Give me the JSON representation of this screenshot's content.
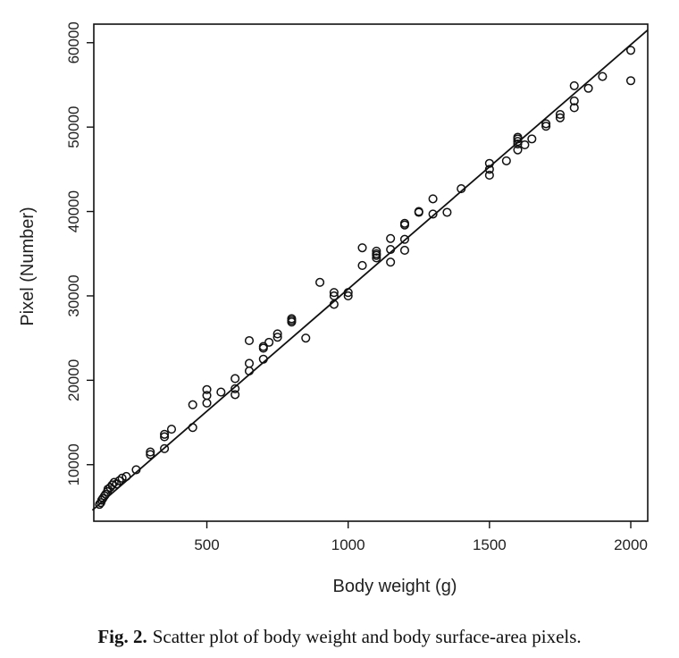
{
  "caption": {
    "label": "Fig. 2.",
    "text": "Scatter plot of body weight and body surface-area pixels."
  },
  "chart_data": {
    "type": "scatter",
    "xlabel": "Body weight (g)",
    "ylabel": "Pixel (Number)",
    "xlim": [
      100,
      2060
    ],
    "ylim": [
      3300,
      62200
    ],
    "xticks": [
      500,
      1000,
      1500,
      2000
    ],
    "yticks": [
      10000,
      20000,
      30000,
      40000,
      50000,
      60000
    ],
    "grid": false,
    "fit_line": {
      "x1": 95,
      "y1": 4600,
      "x2": 2060,
      "y2": 61500
    },
    "points": [
      [
        120,
        5300
      ],
      [
        125,
        5500
      ],
      [
        128,
        5800
      ],
      [
        132,
        6000
      ],
      [
        138,
        6300
      ],
      [
        142,
        6500
      ],
      [
        148,
        6800
      ],
      [
        150,
        7100
      ],
      [
        158,
        7300
      ],
      [
        165,
        7600
      ],
      [
        172,
        7900
      ],
      [
        180,
        7700
      ],
      [
        190,
        8100
      ],
      [
        200,
        8400
      ],
      [
        215,
        8600
      ],
      [
        250,
        9400
      ],
      [
        300,
        11200
      ],
      [
        300,
        11500
      ],
      [
        350,
        11900
      ],
      [
        350,
        13300
      ],
      [
        350,
        13600
      ],
      [
        375,
        14200
      ],
      [
        450,
        14400
      ],
      [
        450,
        17100
      ],
      [
        500,
        17300
      ],
      [
        500,
        18200
      ],
      [
        500,
        18900
      ],
      [
        550,
        18600
      ],
      [
        600,
        18300
      ],
      [
        600,
        19000
      ],
      [
        600,
        20200
      ],
      [
        650,
        21100
      ],
      [
        650,
        22000
      ],
      [
        650,
        24700
      ],
      [
        700,
        22500
      ],
      [
        700,
        23800
      ],
      [
        700,
        24000
      ],
      [
        720,
        24500
      ],
      [
        750,
        25100
      ],
      [
        750,
        25500
      ],
      [
        800,
        26900
      ],
      [
        800,
        27100
      ],
      [
        800,
        27300
      ],
      [
        850,
        25000
      ],
      [
        900,
        31600
      ],
      [
        950,
        29000
      ],
      [
        950,
        30000
      ],
      [
        950,
        30400
      ],
      [
        1000,
        30000
      ],
      [
        1000,
        30400
      ],
      [
        1050,
        33600
      ],
      [
        1050,
        35700
      ],
      [
        1100,
        34500
      ],
      [
        1100,
        34800
      ],
      [
        1100,
        35000
      ],
      [
        1100,
        35300
      ],
      [
        1150,
        34000
      ],
      [
        1150,
        35500
      ],
      [
        1150,
        36800
      ],
      [
        1200,
        35400
      ],
      [
        1200,
        36700
      ],
      [
        1200,
        38400
      ],
      [
        1200,
        38600
      ],
      [
        1250,
        39900
      ],
      [
        1250,
        40000
      ],
      [
        1300,
        39700
      ],
      [
        1300,
        41500
      ],
      [
        1350,
        39900
      ],
      [
        1400,
        42700
      ],
      [
        1500,
        44300
      ],
      [
        1500,
        45000
      ],
      [
        1500,
        45700
      ],
      [
        1560,
        46000
      ],
      [
        1600,
        47300
      ],
      [
        1600,
        48000
      ],
      [
        1600,
        48300
      ],
      [
        1600,
        48600
      ],
      [
        1600,
        48800
      ],
      [
        1625,
        47900
      ],
      [
        1650,
        48600
      ],
      [
        1700,
        50100
      ],
      [
        1700,
        50400
      ],
      [
        1750,
        51100
      ],
      [
        1750,
        51500
      ],
      [
        1800,
        52300
      ],
      [
        1800,
        53100
      ],
      [
        1800,
        54900
      ],
      [
        1850,
        54600
      ],
      [
        1900,
        56000
      ],
      [
        2000,
        55500
      ],
      [
        2000,
        59100
      ]
    ]
  }
}
